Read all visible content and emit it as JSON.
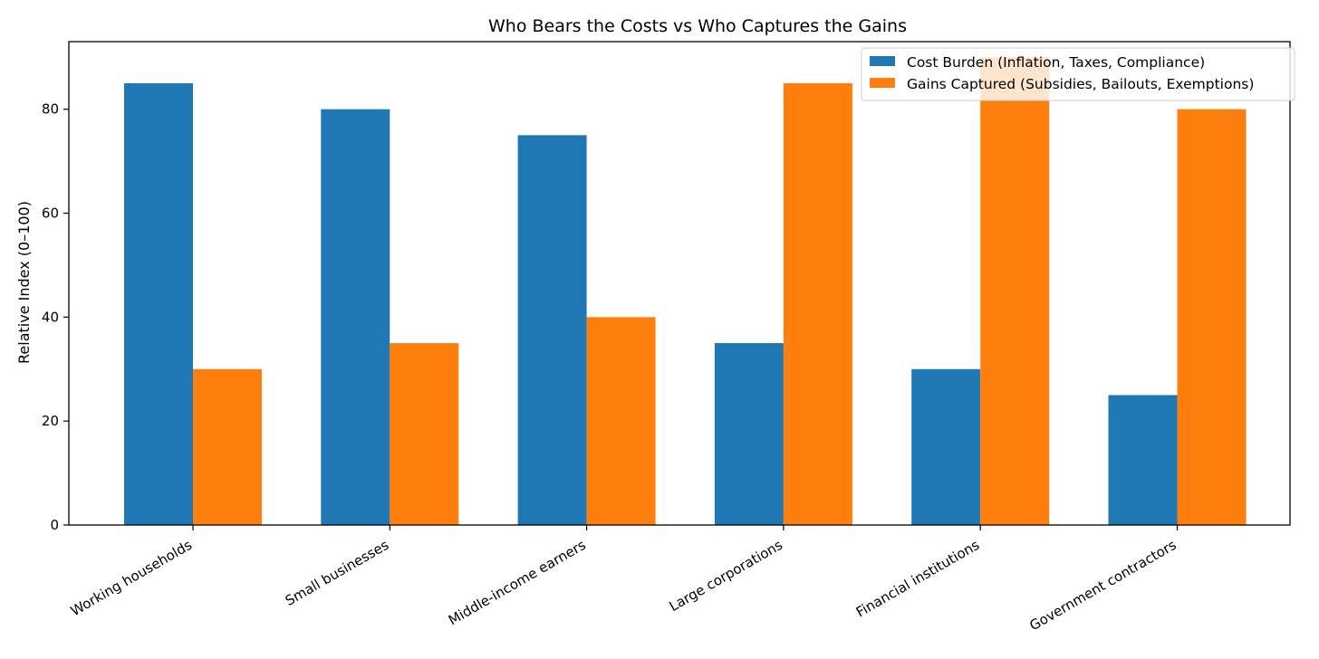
{
  "chart_data": {
    "type": "bar",
    "title": "Who Bears the Costs vs Who Captures the Gains",
    "xlabel": "",
    "ylabel": "Relative Index (0–100)",
    "ylim": [
      0,
      93
    ],
    "yticks": [
      0,
      20,
      40,
      60,
      80
    ],
    "grid": false,
    "legend_position": "top-right",
    "categories": [
      "Working households",
      "Small businesses",
      "Middle-income earners",
      "Large corporations",
      "Financial institutions",
      "Government contractors"
    ],
    "series": [
      {
        "name": "Cost Burden (Inflation, Taxes, Compliance)",
        "color": "#1f77b4",
        "values": [
          85,
          80,
          75,
          35,
          30,
          25
        ]
      },
      {
        "name": "Gains Captured (Subsidies, Bailouts, Exemptions)",
        "color": "#ff7f0e",
        "values": [
          30,
          35,
          40,
          85,
          90,
          80
        ]
      }
    ]
  }
}
